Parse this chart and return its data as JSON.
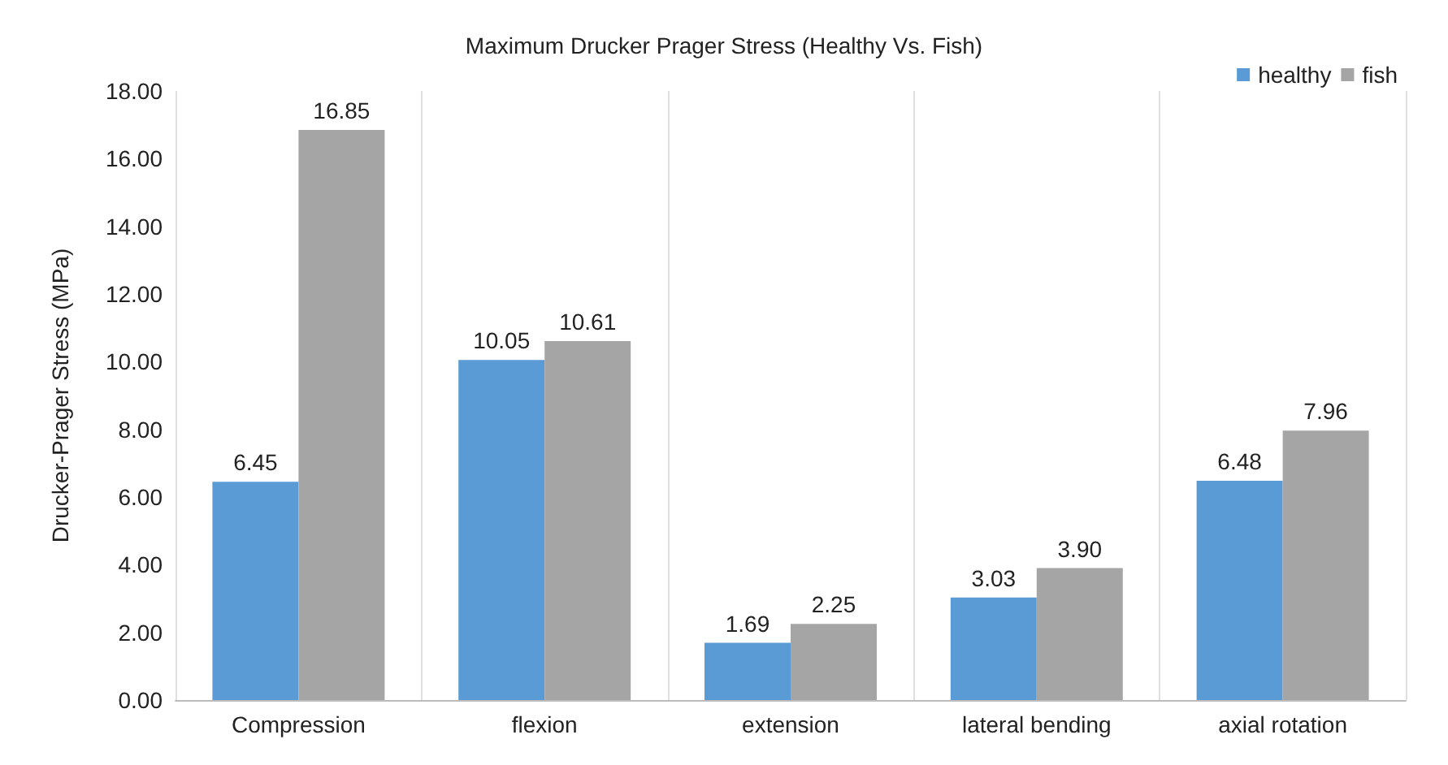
{
  "chart_data": {
    "type": "bar",
    "title": "Maximum Drucker Prager Stress (Healthy Vs. Fish)",
    "ylabel": "Drucker-Prager Stress (MPa)",
    "categories": [
      "Compression",
      "flexion",
      "extension",
      "lateral bending",
      "axial rotation"
    ],
    "series": [
      {
        "name": "healthy",
        "color": "#5b9bd5",
        "values": [
          6.45,
          10.05,
          1.69,
          3.03,
          6.48
        ],
        "value_labels": [
          "6.45",
          "10.05",
          "1.69",
          "3.03",
          "6.48"
        ]
      },
      {
        "name": "fish",
        "color": "#a5a5a5",
        "values": [
          16.85,
          10.61,
          2.25,
          3.9,
          7.96
        ],
        "value_labels": [
          "16.85",
          "10.61",
          "2.25",
          "3.90",
          "7.96"
        ]
      }
    ],
    "ylim": [
      0,
      18
    ],
    "yticks": [
      {
        "value": 0,
        "label": "0.00"
      },
      {
        "value": 2,
        "label": "2.00"
      },
      {
        "value": 4,
        "label": "4.00"
      },
      {
        "value": 6,
        "label": "6.00"
      },
      {
        "value": 8,
        "label": "8.00"
      },
      {
        "value": 10,
        "label": "10.00"
      },
      {
        "value": 12,
        "label": "12.00"
      },
      {
        "value": 14,
        "label": "14.00"
      },
      {
        "value": 16,
        "label": "16.00"
      },
      {
        "value": 18,
        "label": "18.00"
      }
    ],
    "grid": "x",
    "legend": "top right"
  }
}
